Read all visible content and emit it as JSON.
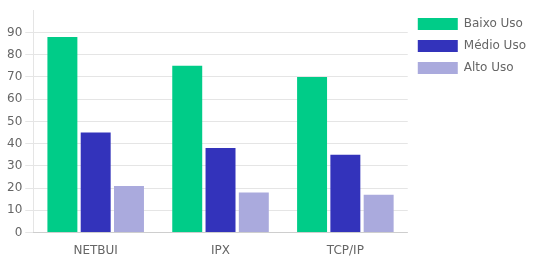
{
  "chart_data": {
    "type": "bar",
    "categories": [
      "NETBUI",
      "IPX",
      "TCP/IP"
    ],
    "series": [
      {
        "name": "Baixo Uso",
        "color": "#00CC88",
        "values": [
          88,
          75,
          70
        ]
      },
      {
        "name": "Médio Uso",
        "color": "#3333BB",
        "values": [
          45,
          38,
          35
        ]
      },
      {
        "name": "Alto Uso",
        "color": "#AAAADD",
        "values": [
          21,
          18,
          17
        ]
      }
    ],
    "ylim": [
      0,
      100
    ],
    "yticks": [
      0,
      10,
      20,
      30,
      40,
      50,
      60,
      70,
      80,
      90
    ],
    "grid": true,
    "legend": "right"
  }
}
